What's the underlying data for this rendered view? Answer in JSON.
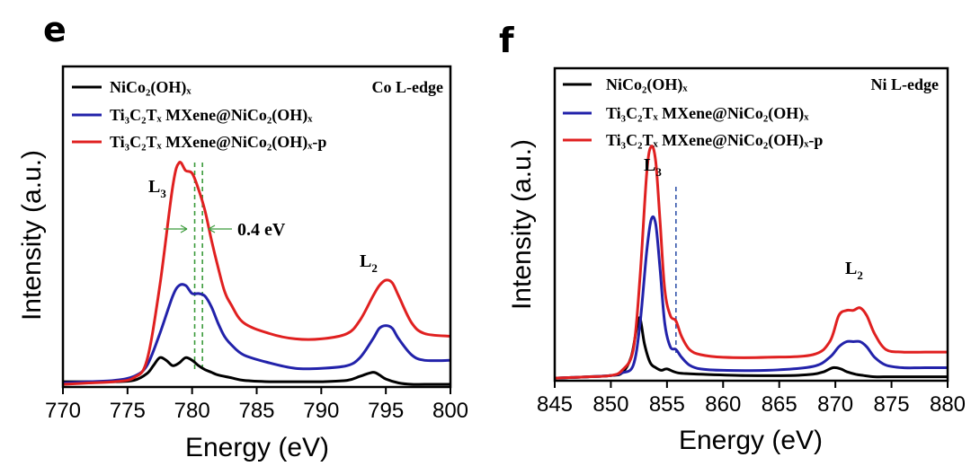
{
  "chart_data": [
    {
      "type": "line",
      "panel": "e",
      "edge_label": "Co L-edge",
      "xlabel": "Energy (eV)",
      "ylabel": "Intensity (a.u.)",
      "xlim": [
        770,
        800
      ],
      "ylim": [
        0,
        1.2
      ],
      "xticks": [
        770,
        775,
        780,
        785,
        790,
        795,
        800
      ],
      "peak_labels": [
        {
          "main": "L",
          "sub": "3",
          "x": 777.6,
          "y": 0.8
        },
        {
          "main": "L",
          "sub": "2",
          "x": 794.0,
          "y": 0.46
        }
      ],
      "shift_annotation": {
        "text": "0.4 eV",
        "x1": 780.2,
        "x2": 780.8
      },
      "series": [
        {
          "name": "NiCo₂(OH)ₓ",
          "color": "#000000",
          "x": [
            770,
            772,
            774,
            775.5,
            776.5,
            777,
            777.5,
            778,
            778.5,
            779,
            779.5,
            780,
            780.5,
            781,
            781.5,
            782,
            783,
            784,
            786,
            788,
            790,
            792,
            793,
            794,
            794.5,
            795,
            796,
            797,
            798,
            800
          ],
          "y": [
            0.02,
            0.02,
            0.02,
            0.025,
            0.05,
            0.08,
            0.11,
            0.1,
            0.08,
            0.09,
            0.11,
            0.1,
            0.08,
            0.065,
            0.055,
            0.045,
            0.035,
            0.025,
            0.02,
            0.02,
            0.02,
            0.025,
            0.04,
            0.055,
            0.045,
            0.03,
            0.015,
            0.01,
            0.01,
            0.01
          ]
        },
        {
          "name": "Ti₃C₂Tₓ MXene@NiCo₂(OH)ₓ",
          "color": "#2222aa",
          "x": [
            770,
            772,
            774,
            775.5,
            776.5,
            777.5,
            778.5,
            779,
            779.5,
            780,
            780.5,
            781,
            781.5,
            782,
            782.5,
            783,
            784,
            786,
            788,
            790,
            792,
            793,
            794,
            794.5,
            795,
            795.5,
            796,
            797,
            798,
            800
          ],
          "y": [
            0.015,
            0.02,
            0.025,
            0.04,
            0.08,
            0.2,
            0.34,
            0.38,
            0.38,
            0.35,
            0.35,
            0.34,
            0.3,
            0.24,
            0.19,
            0.16,
            0.12,
            0.09,
            0.07,
            0.07,
            0.08,
            0.11,
            0.18,
            0.22,
            0.23,
            0.22,
            0.18,
            0.12,
            0.1,
            0.1
          ]
        },
        {
          "name": "Ti₃C₂Tₓ MXene@NiCo₂(OH)ₓ-p",
          "color": "#e02020",
          "x": [
            770,
            772,
            774,
            775.5,
            776.5,
            777.5,
            778.5,
            779,
            779.5,
            780,
            780.5,
            781,
            781.5,
            782,
            782.5,
            783,
            784,
            786,
            788,
            790,
            792,
            793,
            794,
            794.5,
            795,
            795.5,
            796,
            797,
            798,
            800
          ],
          "y": [
            0.01,
            0.015,
            0.02,
            0.035,
            0.1,
            0.38,
            0.75,
            0.84,
            0.81,
            0.8,
            0.74,
            0.66,
            0.55,
            0.45,
            0.36,
            0.31,
            0.24,
            0.2,
            0.18,
            0.18,
            0.2,
            0.25,
            0.34,
            0.38,
            0.4,
            0.39,
            0.34,
            0.24,
            0.2,
            0.19
          ]
        }
      ],
      "vlines": [
        {
          "x": 780.2,
          "color": "#3a9a3a"
        },
        {
          "x": 780.8,
          "color": "#3a9a3a"
        }
      ]
    },
    {
      "type": "line",
      "panel": "f",
      "edge_label": "Ni L-edge",
      "xlabel": "Energy (eV)",
      "ylabel": "Intensity (a.u.)",
      "xlim": [
        845,
        880
      ],
      "ylim": [
        0,
        1.2
      ],
      "xticks": [
        845,
        850,
        855,
        860,
        865,
        870,
        875,
        880
      ],
      "peak_labels": [
        {
          "main": "L",
          "sub": "3",
          "x": 853.0,
          "y": 0.86
        },
        {
          "main": "L",
          "sub": "2",
          "x": 870.8,
          "y": 0.39
        }
      ],
      "series": [
        {
          "name": "NiCo₂(OH)ₓ",
          "color": "#000000",
          "x": [
            845,
            848,
            850,
            851,
            851.8,
            852.3,
            852.6,
            853,
            853.5,
            854,
            854.5,
            855,
            856,
            858,
            862,
            866,
            868,
            869,
            869.8,
            870.5,
            871,
            871.8,
            872.5,
            873.5,
            875,
            878,
            880
          ],
          "y": [
            0.01,
            0.015,
            0.02,
            0.03,
            0.09,
            0.2,
            0.24,
            0.14,
            0.07,
            0.05,
            0.04,
            0.045,
            0.03,
            0.025,
            0.02,
            0.02,
            0.025,
            0.035,
            0.05,
            0.045,
            0.035,
            0.025,
            0.02,
            0.015,
            0.015,
            0.015,
            0.015
          ]
        },
        {
          "name": "Ti₃C₂Tₓ MXene@NiCo₂(OH)ₓ",
          "color": "#2222aa",
          "x": [
            845,
            848,
            850,
            851,
            852,
            852.6,
            853.2,
            853.6,
            854,
            854.4,
            854.8,
            855.3,
            855.8,
            856.3,
            857,
            858,
            860,
            864,
            868,
            869.5,
            870.3,
            871,
            871.6,
            872.2,
            872.8,
            873.5,
            874.5,
            876,
            878,
            880
          ],
          "y": [
            0.01,
            0.015,
            0.02,
            0.03,
            0.06,
            0.22,
            0.5,
            0.62,
            0.6,
            0.42,
            0.22,
            0.13,
            0.12,
            0.09,
            0.06,
            0.045,
            0.04,
            0.04,
            0.055,
            0.09,
            0.13,
            0.15,
            0.15,
            0.15,
            0.13,
            0.09,
            0.06,
            0.05,
            0.05,
            0.05
          ]
        },
        {
          "name": "Ti₃C₂Tₓ MXene@NiCo₂(OH)ₓ-p",
          "color": "#e02020",
          "x": [
            845,
            848,
            850,
            851,
            852,
            852.6,
            853.2,
            853.6,
            854,
            854.4,
            854.8,
            855.3,
            855.8,
            856.3,
            857,
            858,
            860,
            864,
            868,
            869.5,
            870.3,
            871,
            871.6,
            872.2,
            872.8,
            873.5,
            874.5,
            876,
            878,
            880
          ],
          "y": [
            0.01,
            0.015,
            0.02,
            0.04,
            0.12,
            0.4,
            0.8,
            0.9,
            0.84,
            0.6,
            0.35,
            0.25,
            0.23,
            0.17,
            0.12,
            0.1,
            0.09,
            0.09,
            0.1,
            0.15,
            0.25,
            0.27,
            0.27,
            0.28,
            0.25,
            0.18,
            0.12,
            0.11,
            0.11,
            0.11
          ]
        }
      ],
      "vlines": [
        {
          "x": 855.8,
          "color": "#3355aa"
        }
      ]
    }
  ]
}
